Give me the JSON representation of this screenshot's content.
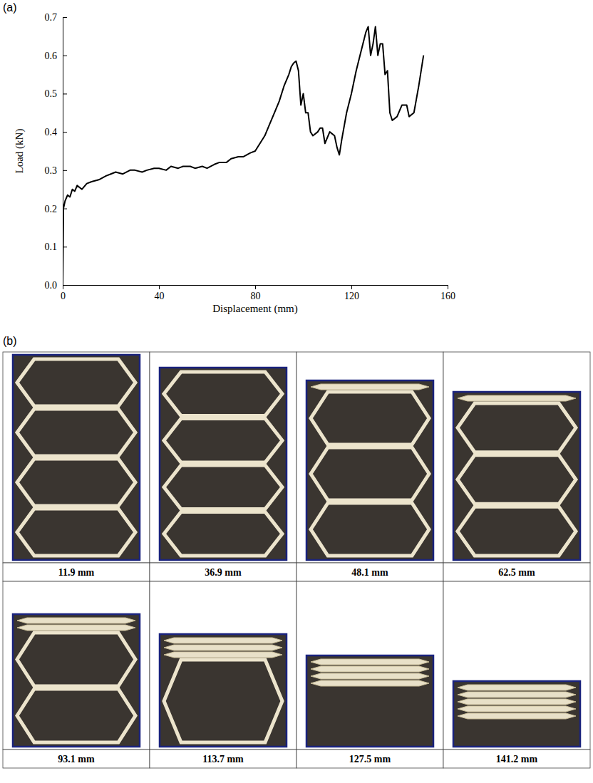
{
  "chart_data": {
    "type": "line",
    "panel_label": "(a)",
    "x_label": "Displacement (mm)",
    "y_label": "Load (kN)",
    "color": "#000000",
    "x": [
      0,
      0.3,
      1,
      2,
      3,
      4,
      5,
      6,
      8,
      10,
      12,
      15,
      18,
      20,
      22,
      25,
      28,
      30,
      33,
      35,
      38,
      40,
      43,
      45,
      48,
      50,
      53,
      55,
      58,
      60,
      63,
      65,
      68,
      70,
      73,
      75,
      78,
      80,
      82,
      84,
      86,
      88,
      90,
      92,
      94,
      95,
      96,
      97,
      98,
      99,
      100,
      101,
      102,
      103,
      104,
      106,
      107,
      108,
      109,
      111,
      113,
      114,
      115,
      116,
      118,
      120,
      122,
      124,
      126,
      127,
      128,
      129,
      130,
      131,
      132,
      133,
      134,
      135,
      136,
      137,
      139,
      141,
      143,
      144,
      146,
      148,
      150
    ],
    "values": [
      0,
      0.2,
      0.22,
      0.235,
      0.23,
      0.25,
      0.245,
      0.26,
      0.25,
      0.265,
      0.27,
      0.275,
      0.285,
      0.29,
      0.295,
      0.29,
      0.3,
      0.3,
      0.295,
      0.3,
      0.305,
      0.305,
      0.3,
      0.31,
      0.305,
      0.31,
      0.31,
      0.305,
      0.31,
      0.305,
      0.315,
      0.32,
      0.32,
      0.33,
      0.335,
      0.335,
      0.345,
      0.35,
      0.37,
      0.39,
      0.42,
      0.45,
      0.48,
      0.52,
      0.55,
      0.57,
      0.58,
      0.585,
      0.56,
      0.47,
      0.5,
      0.45,
      0.45,
      0.4,
      0.39,
      0.4,
      0.41,
      0.41,
      0.37,
      0.4,
      0.39,
      0.36,
      0.34,
      0.38,
      0.45,
      0.5,
      0.56,
      0.61,
      0.66,
      0.675,
      0.6,
      0.63,
      0.675,
      0.6,
      0.63,
      0.63,
      0.55,
      0.56,
      0.45,
      0.43,
      0.44,
      0.47,
      0.47,
      0.44,
      0.45,
      0.52,
      0.6
    ],
    "xlim": [
      0,
      160
    ],
    "xticks": [
      0,
      40,
      80,
      120,
      160
    ],
    "ylim": [
      0,
      0.7
    ],
    "yticks": [
      {
        "value": 0,
        "label": "0.0"
      },
      0.1,
      0.2,
      0.3,
      0.4,
      0.5,
      0.6,
      0.7
    ],
    "grid": false
  },
  "photos": {
    "panel_label": "(b)",
    "captions": [
      "11.9 mm",
      "36.9 mm",
      "48.1 mm",
      "62.5 mm",
      "93.1 mm",
      "113.7 mm",
      "127.5 mm",
      "141.2 mm"
    ]
  }
}
